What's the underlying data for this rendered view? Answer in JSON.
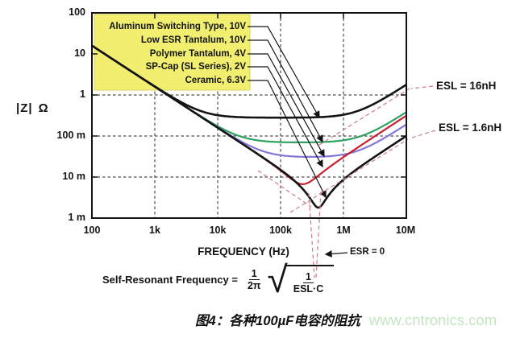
{
  "chart_data": {
    "type": "line",
    "xlabel": "FREQUENCY (Hz)",
    "ylabel": "|Z|",
    "ylabel_unit": "Ω",
    "x_log": true,
    "y_log": true,
    "x_range_hz": [
      100,
      10000000
    ],
    "y_range_ohm": [
      0.001,
      100
    ],
    "x_tick_labels": [
      "100",
      "1k",
      "10k",
      "100k",
      "1M",
      "10M"
    ],
    "y_tick_labels": [
      "100",
      "10",
      "1",
      "100 m",
      "10 m",
      "1 m"
    ],
    "grid": {
      "x_gridlines_hz": [
        1000,
        10000,
        100000,
        1000000
      ],
      "y_gridlines_ohm": [
        1,
        0.1,
        0.01
      ]
    },
    "capacitance_uF": 100,
    "series": [
      {
        "name": "Aluminum Switching Type, 10V",
        "color": "#141414",
        "esr_ohm_approx": 0.28,
        "esl_nH_approx": 28
      },
      {
        "name": "Low ESR Tantalum, 10V",
        "color": "#2fa261",
        "esr_ohm_approx": 0.07,
        "esl_nH_approx": 6
      },
      {
        "name": "Polymer Tantalum, 4V",
        "color": "#8476d6",
        "esr_ohm_approx": 0.031,
        "esl_nH_approx": 3
      },
      {
        "name": "SP-Cap (SL Series), 2V",
        "color": "#c9202f",
        "esr_ohm_approx": 0.0067,
        "esl_nH_approx": 5
      },
      {
        "name": "Ceramic, 6.3V",
        "color": "#141414",
        "esr_ohm_approx": 0.0018,
        "esl_nH_approx": 1.6
      }
    ],
    "annotations": [
      "ESL = 16nH",
      "ESL = 1.6nH",
      "ESR = 0"
    ]
  },
  "labels": {
    "esl_16": "ESL = 16nH",
    "esl_1p6": "ESL = 1.6nH",
    "esr_0": "ESR = 0"
  },
  "formula": {
    "lhs": "Self-Resonant Frequency =",
    "f1_num": "1",
    "f1_den": "2π",
    "f2_num": "1",
    "f2_den": "ESL·C"
  },
  "caption": {
    "text": "图4：各种100µF电容的阻抗",
    "watermark": "www.cntronics.com"
  }
}
